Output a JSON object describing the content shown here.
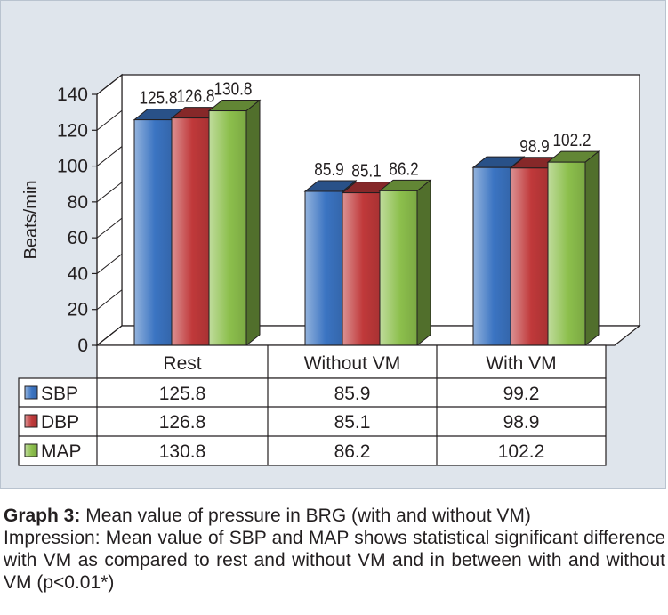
{
  "chart_data": {
    "type": "bar",
    "categories": [
      "Rest",
      "Without VM",
      "With VM"
    ],
    "series": [
      {
        "name": "SBP",
        "values": [
          125.8,
          85.9,
          99.2
        ],
        "color": "#3b74c2"
      },
      {
        "name": "DBP",
        "values": [
          126.8,
          85.1,
          98.9
        ],
        "color": "#c0393a"
      },
      {
        "name": "MAP",
        "values": [
          130.8,
          86.2,
          102.2
        ],
        "color": "#8cbf4c"
      }
    ],
    "bar_labels": [
      [
        "125.8",
        "126.8",
        "130.8"
      ],
      [
        "85.9",
        "85.1",
        "86.2"
      ],
      [
        "",
        "98.9",
        "102.2"
      ]
    ],
    "ylabel": "Beats/min",
    "ylim": [
      0,
      140
    ],
    "yticks": [
      "0",
      "20",
      "40",
      "60",
      "80",
      "100",
      "120",
      "140"
    ],
    "style": "3d-clustered-bar-with-data-table",
    "grid": false,
    "legend": "in-data-table"
  },
  "caption": {
    "lead": "Graph 3:",
    "line1": "Mean value of pressure in BRG (with and without VM)",
    "body": "Impression: Mean value of SBP and MAP shows statistical significant difference with VM as compared to rest and without VM and in between with and without VM (p<0.01*)"
  }
}
